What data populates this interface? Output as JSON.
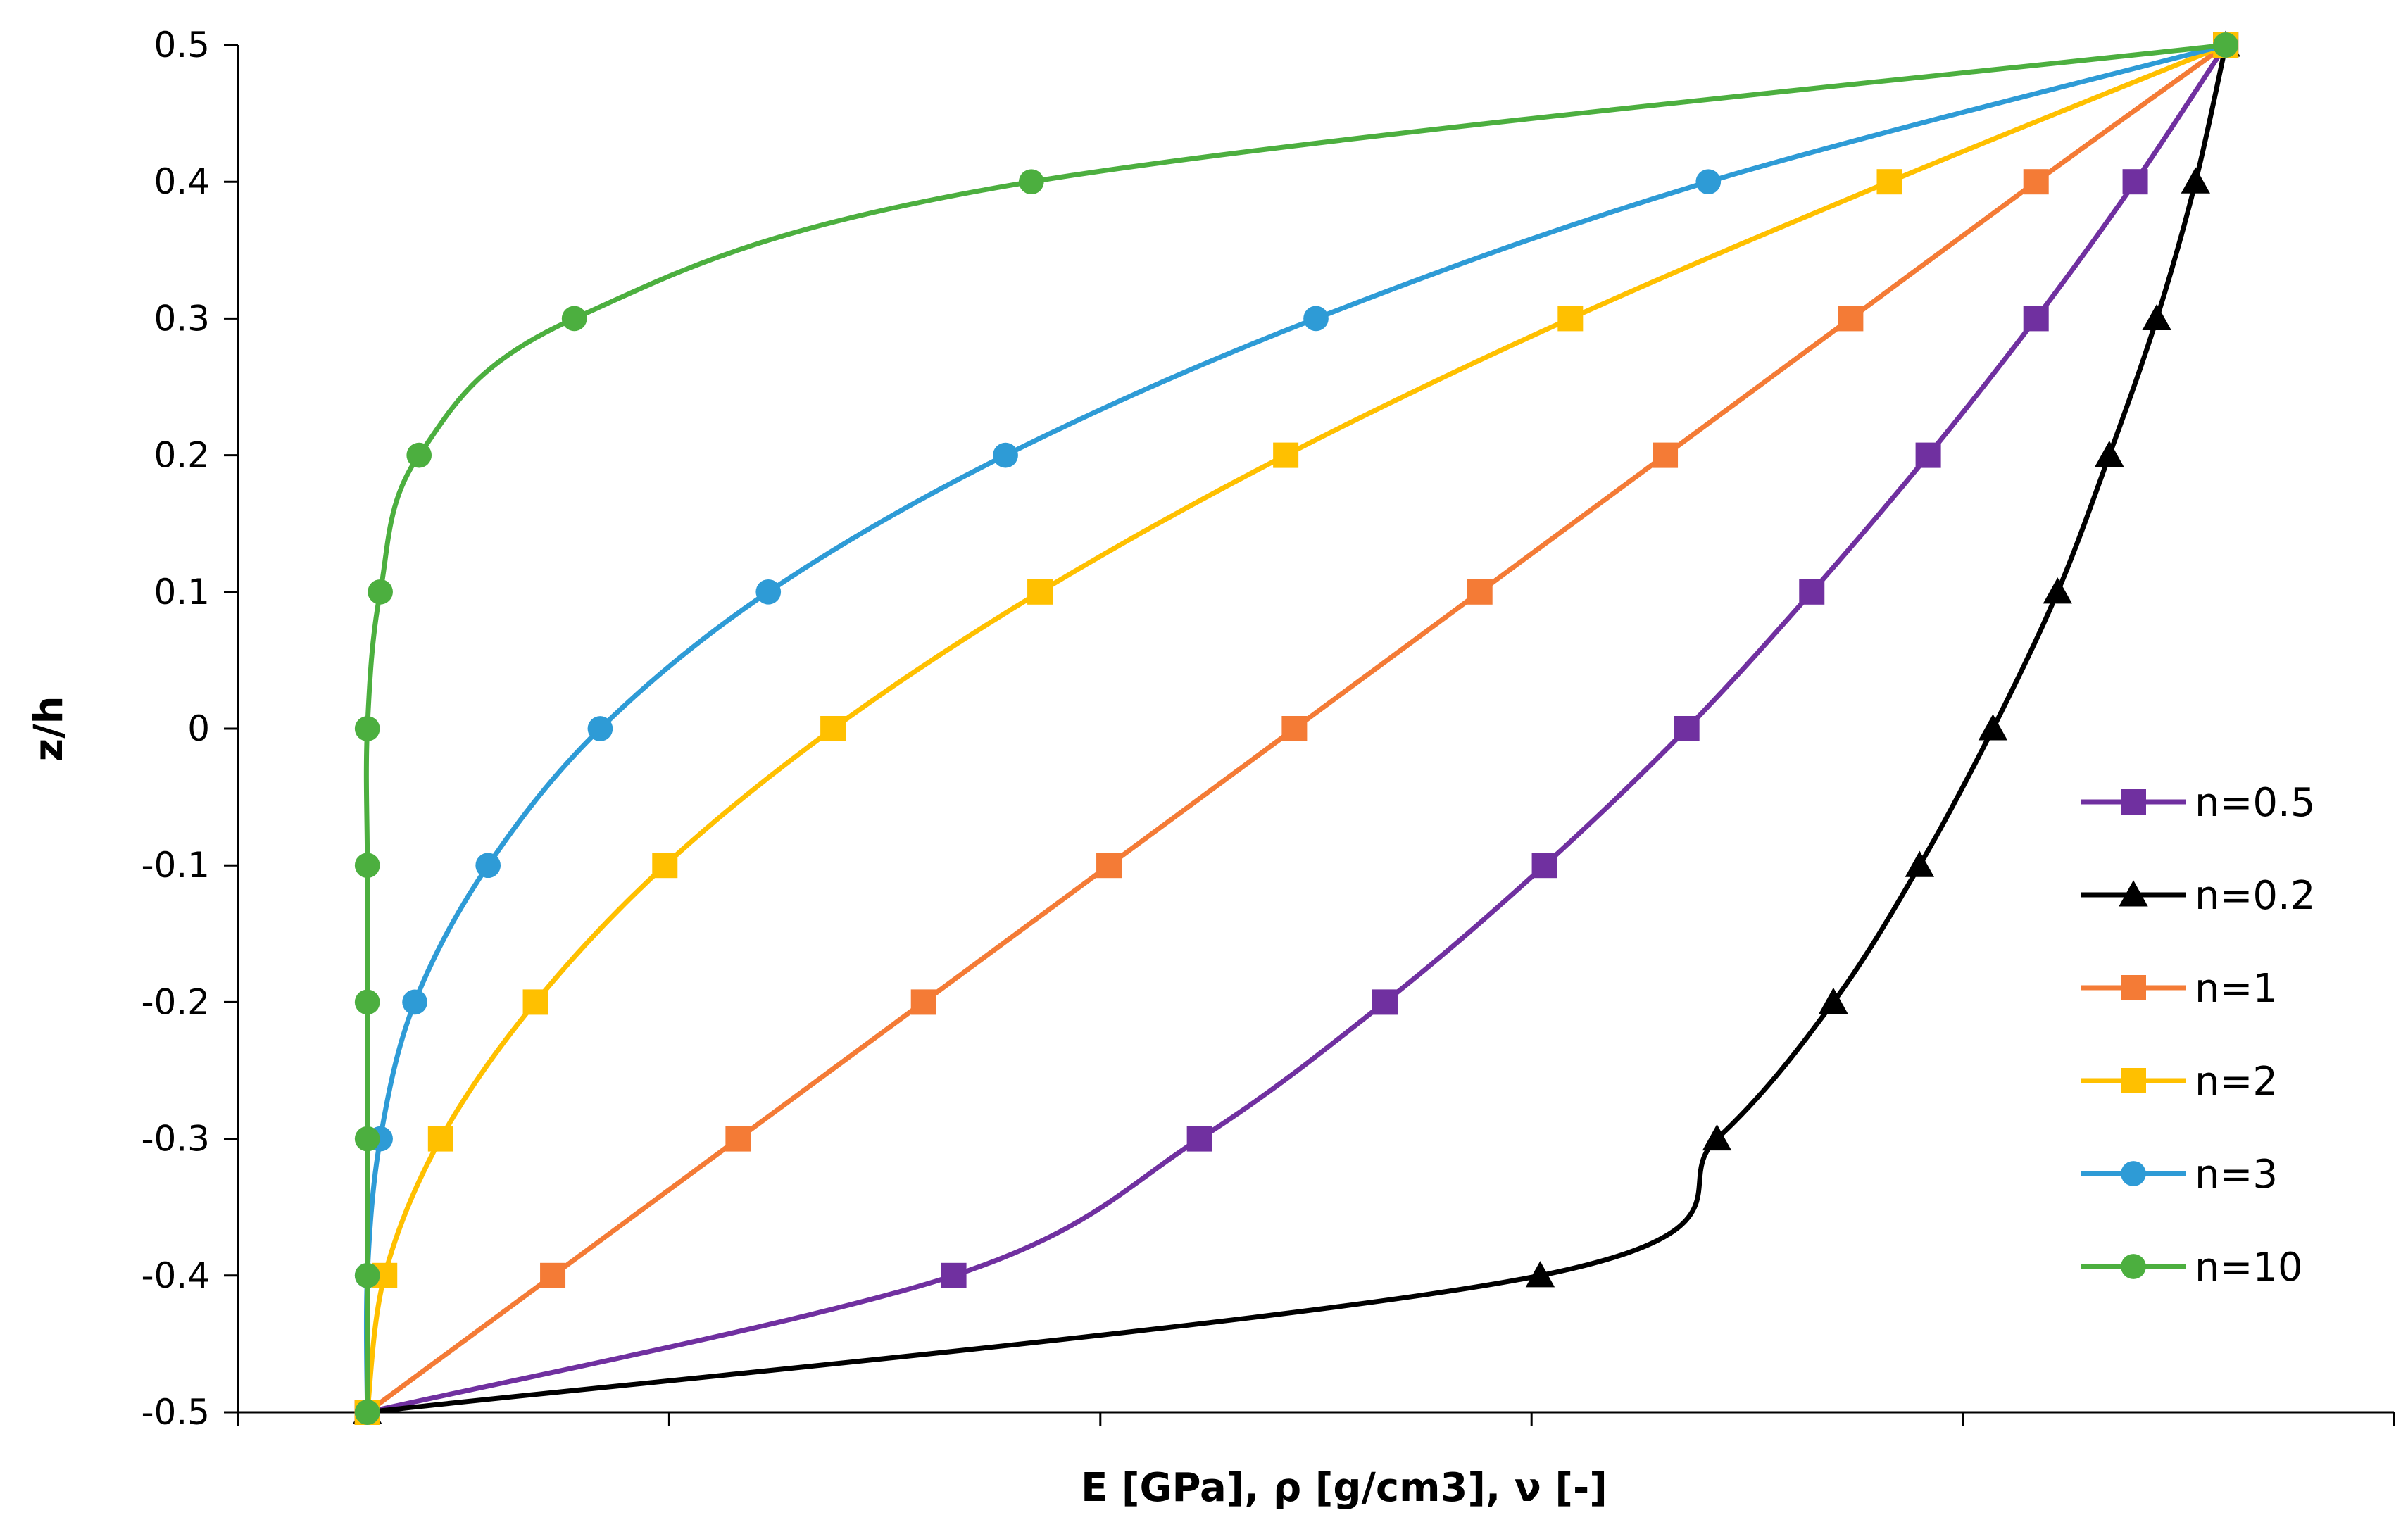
{
  "chart_data": {
    "type": "line",
    "title": "",
    "xlabel": "E [GPa], ρ [g/cm3], ν [-]",
    "ylabel": "z/h",
    "xlim": [
      0,
      5
    ],
    "ylim": [
      -0.5,
      0.5
    ],
    "xticks": [
      0,
      1,
      2,
      3,
      4,
      5
    ],
    "yticks": [
      "-0.5",
      "-0.4",
      "-0.3",
      "-0.2",
      "-0.1",
      "0",
      "0.1",
      "0.2",
      "0.3",
      "0.4",
      "0.5"
    ],
    "x_tick_labels_shown": false,
    "grid": false,
    "legend_position": "right",
    "series": [
      {
        "name": "n=0.5",
        "color": "#7030A0",
        "marker": "square",
        "points": [
          [
            0.3,
            -0.5
          ],
          [
            1.66,
            -0.4
          ],
          [
            2.23,
            -0.3
          ],
          [
            2.66,
            -0.2
          ],
          [
            3.03,
            -0.1
          ],
          [
            3.36,
            0
          ],
          [
            3.65,
            0.1
          ],
          [
            3.92,
            0.2
          ],
          [
            4.17,
            0.3
          ],
          [
            4.4,
            0.4
          ],
          [
            4.61,
            0.5
          ]
        ]
      },
      {
        "name": "n=0.2",
        "color": "#000000",
        "marker": "triangle",
        "points": [
          [
            0.3,
            -0.5
          ],
          [
            3.02,
            -0.4
          ],
          [
            3.43,
            -0.3
          ],
          [
            3.7,
            -0.2
          ],
          [
            3.9,
            -0.1
          ],
          [
            4.07,
            0
          ],
          [
            4.22,
            0.1
          ],
          [
            4.34,
            0.2
          ],
          [
            4.45,
            0.3
          ],
          [
            4.54,
            0.4
          ],
          [
            4.61,
            0.5
          ]
        ]
      },
      {
        "name": "n=1",
        "color": "#F47B36",
        "marker": "square",
        "points": [
          [
            0.3,
            -0.5
          ],
          [
            0.73,
            -0.4
          ],
          [
            1.16,
            -0.3
          ],
          [
            1.59,
            -0.2
          ],
          [
            2.02,
            -0.1
          ],
          [
            2.45,
            0
          ],
          [
            2.88,
            0.1
          ],
          [
            3.31,
            0.2
          ],
          [
            3.74,
            0.3
          ],
          [
            4.17,
            0.4
          ],
          [
            4.61,
            0.5
          ]
        ]
      },
      {
        "name": "n=2",
        "color": "#FFC000",
        "marker": "square",
        "points": [
          [
            0.3,
            -0.5
          ],
          [
            0.34,
            -0.4
          ],
          [
            0.47,
            -0.3
          ],
          [
            0.69,
            -0.2
          ],
          [
            0.99,
            -0.1
          ],
          [
            1.38,
            0
          ],
          [
            1.86,
            0.1
          ],
          [
            2.43,
            0.2
          ],
          [
            3.09,
            0.3
          ],
          [
            3.83,
            0.4
          ],
          [
            4.61,
            0.5
          ]
        ]
      },
      {
        "name": "n=3",
        "color": "#2E9BD6",
        "marker": "circle",
        "points": [
          [
            0.3,
            -0.5
          ],
          [
            0.3,
            -0.4
          ],
          [
            0.33,
            -0.3
          ],
          [
            0.41,
            -0.2
          ],
          [
            0.58,
            -0.1
          ],
          [
            0.84,
            0
          ],
          [
            1.23,
            0.1
          ],
          [
            1.78,
            0.2
          ],
          [
            2.5,
            0.3
          ],
          [
            3.41,
            0.4
          ],
          [
            4.61,
            0.5
          ]
        ]
      },
      {
        "name": "n=10",
        "color": "#4CAF3F",
        "marker": "circle",
        "points": [
          [
            0.3,
            -0.5
          ],
          [
            0.3,
            -0.4
          ],
          [
            0.3,
            -0.3
          ],
          [
            0.3,
            -0.2
          ],
          [
            0.3,
            -0.1
          ],
          [
            0.3,
            0
          ],
          [
            0.33,
            0.1
          ],
          [
            0.42,
            0.2
          ],
          [
            0.78,
            0.3
          ],
          [
            1.84,
            0.4
          ],
          [
            4.61,
            0.5
          ]
        ]
      }
    ]
  }
}
